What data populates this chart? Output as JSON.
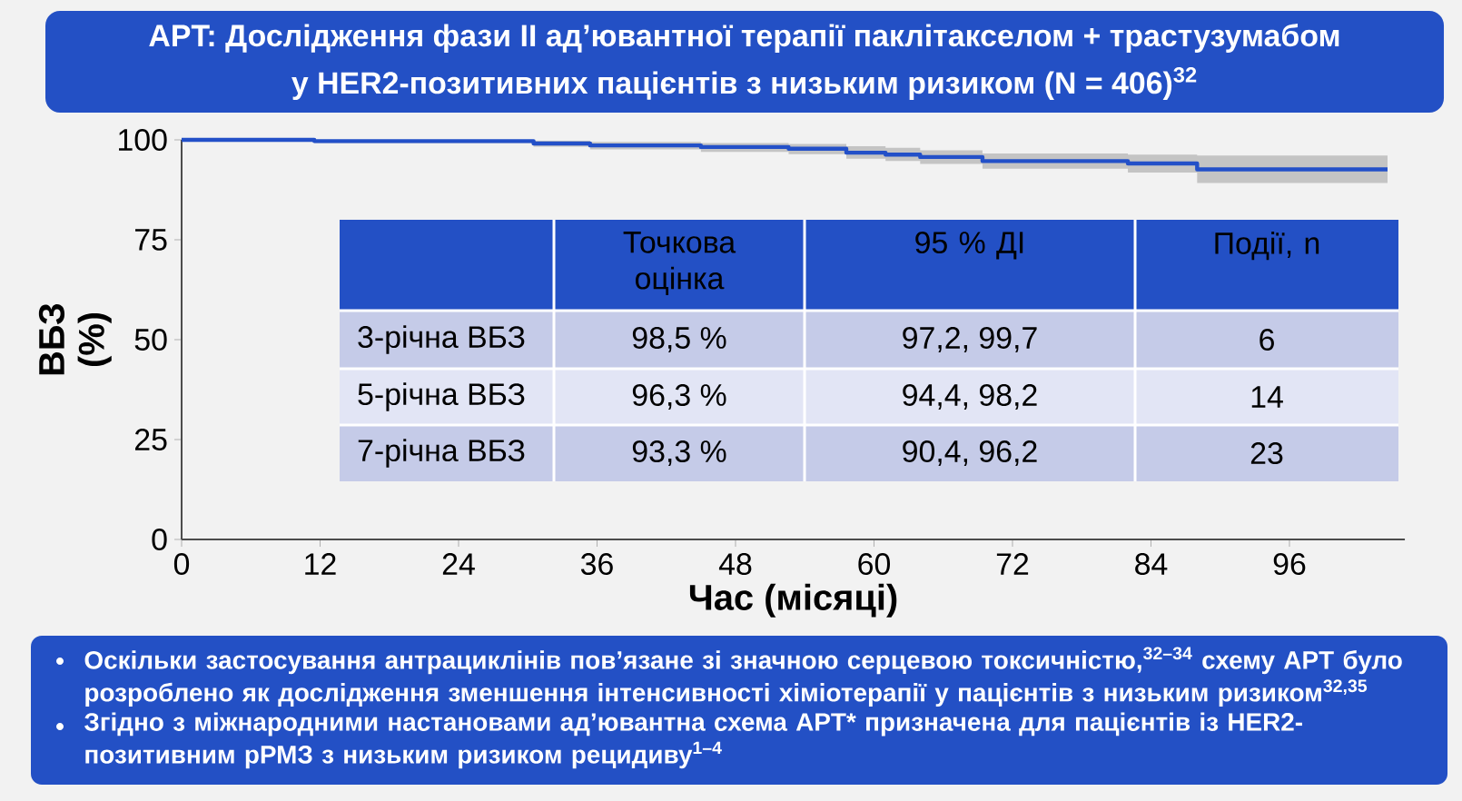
{
  "chart_data": {
    "type": "step",
    "title": "APT: Дослідження фази II ад’ювантної терапії паклітакселом + трастузумабом",
    "subtitle": "у HER2-позитивних пацієнтів з низьким ризиком (N = 406)$^{32}$",
    "xlabel": "Час (місяці)",
    "ylabel": "ВБЗ (%)",
    "xlim": [
      0,
      106
    ],
    "xticks": [
      0,
      12,
      24,
      36,
      48,
      60,
      72,
      84,
      96
    ],
    "ylim": [
      0,
      100
    ],
    "yticks": [
      0,
      25,
      50,
      75,
      100
    ],
    "series": [
      {
        "color": "#2350c8",
        "x": [
          0,
          11.5,
          30.5,
          35.4,
          45,
          52.6,
          57.6,
          61,
          64,
          69.4,
          82,
          88,
          104.5
        ],
        "values": [
          100,
          99.7,
          99.1,
          98.6,
          98.2,
          97.8,
          96.8,
          96.3,
          95.7,
          94.7,
          94.1,
          92.6,
          92.6
        ],
        "lower": [
          100,
          99.2,
          98.3,
          97.6,
          97,
          96.4,
          95.3,
          94.7,
          94,
          92.8,
          91.8,
          89.2,
          89.2
        ],
        "upper": [
          100,
          100,
          99.8,
          99.5,
          99.2,
          99,
          98.4,
          98,
          97.4,
          96.6,
          96.3,
          96.1,
          96.1
        ]
      }
    ],
    "annotations": [
      "Точкова оцінка",
      "95 % ДІ",
      "Події, n",
      "3-річна ВБЗ",
      "98,5 %",
      "97,2, 99,7",
      "6",
      "5-річна ВБЗ",
      "96,3 %",
      "94,4, 98,2",
      "14",
      "7-річна ВБЗ",
      "93,3 %",
      "90,4, 96,2",
      "23",
      "Оскільки застосування антрациклінів пов’язане зі значною серцевою токсичністю,$^{32–34}$ схему APT було розроблено як дослідження зменшення інтенсивності хіміотерапії у пацієнтів з низьким ризиком$^{32,35}$",
      "Згідно з міжнародними настановами ад’ювантна схема APT* призначена для пацієнтів із HER2-позитивним рРМЗ з низьким ризиком рецидиву$^{1–4}$"
    ]
  }
}
